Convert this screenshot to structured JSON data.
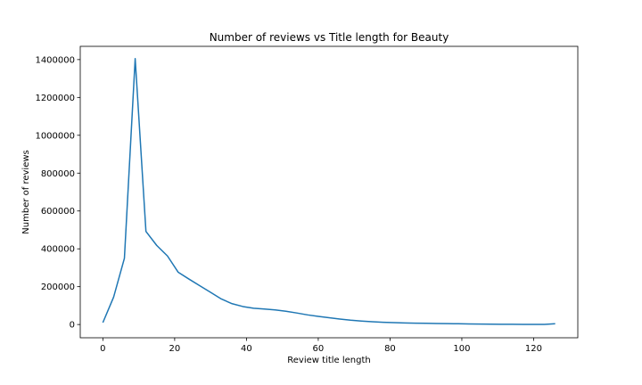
{
  "chart_data": {
    "type": "line",
    "title": "Number of reviews vs Title length for Beauty",
    "xlabel": "Review title length",
    "ylabel": "Number of reviews",
    "xlim": [
      -6.3,
      132.3
    ],
    "ylim": [
      -70000,
      1470000
    ],
    "xticks": [
      0,
      20,
      40,
      60,
      80,
      100,
      120
    ],
    "yticks": [
      0,
      200000,
      400000,
      600000,
      800000,
      1000000,
      1200000,
      1400000
    ],
    "grid": false,
    "legend": "none",
    "series": [
      {
        "color": "#1f77b4",
        "x": [
          0,
          3,
          6,
          9,
          12,
          15,
          18,
          21,
          24,
          27,
          30,
          33,
          36,
          39,
          42,
          45,
          48,
          51,
          54,
          57,
          60,
          63,
          66,
          69,
          72,
          75,
          78,
          81,
          84,
          87,
          90,
          93,
          96,
          99,
          102,
          105,
          108,
          111,
          114,
          117,
          120,
          123,
          126
        ],
        "y": [
          10000,
          145000,
          350000,
          1405000,
          492000,
          418000,
          362000,
          276000,
          240000,
          205000,
          170000,
          135000,
          110000,
          95000,
          86000,
          82000,
          77000,
          70000,
          61000,
          51000,
          43000,
          36000,
          29000,
          23000,
          18500,
          15000,
          12000,
          10000,
          8500,
          7200,
          6400,
          5600,
          4800,
          4000,
          3200,
          2500,
          1900,
          1400,
          1000,
          700,
          500,
          600,
          4000
        ]
      }
    ]
  }
}
